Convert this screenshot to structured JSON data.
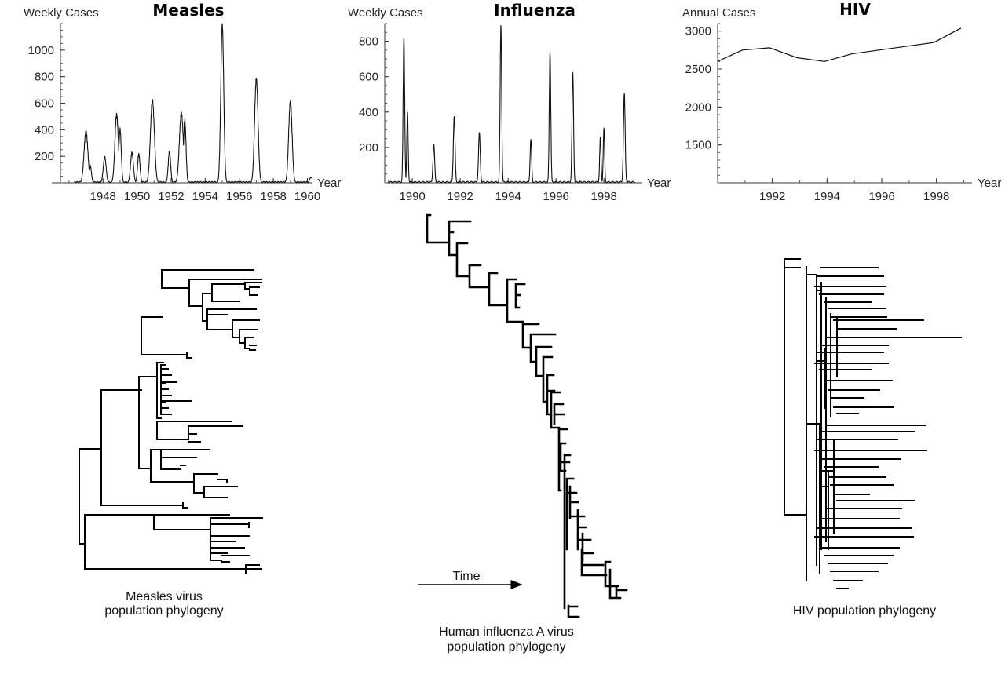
{
  "chart_data": [
    {
      "type": "line",
      "title": "Measles",
      "ylabel": "Weekly Cases",
      "xlabel": "Year",
      "xlim": [
        1945.5,
        1960.3
      ],
      "ylim": [
        0,
        1200
      ],
      "xticks": [
        1948,
        1950,
        1952,
        1954,
        1956,
        1958,
        1960
      ],
      "yticks": [
        200,
        400,
        600,
        800,
        1000
      ],
      "peaks": [
        {
          "x": 1947.0,
          "y": 360,
          "w": 0.16
        },
        {
          "x": 1947.25,
          "y": 120,
          "w": 0.1
        },
        {
          "x": 1948.1,
          "y": 180,
          "w": 0.12
        },
        {
          "x": 1948.8,
          "y": 490,
          "w": 0.14
        },
        {
          "x": 1949.0,
          "y": 380,
          "w": 0.1
        },
        {
          "x": 1949.7,
          "y": 210,
          "w": 0.12
        },
        {
          "x": 1950.1,
          "y": 200,
          "w": 0.1
        },
        {
          "x": 1950.9,
          "y": 600,
          "w": 0.16
        },
        {
          "x": 1951.9,
          "y": 220,
          "w": 0.1
        },
        {
          "x": 1952.6,
          "y": 500,
          "w": 0.16
        },
        {
          "x": 1952.8,
          "y": 450,
          "w": 0.1
        },
        {
          "x": 1955.0,
          "y": 1170,
          "w": 0.12
        },
        {
          "x": 1957.0,
          "y": 760,
          "w": 0.14
        },
        {
          "x": 1959.0,
          "y": 590,
          "w": 0.14
        },
        {
          "x": 1960.2,
          "y": 40,
          "w": 0.1
        }
      ]
    },
    {
      "type": "line",
      "title": "Influenza",
      "ylabel": "Weekly Cases",
      "xlabel": "Year",
      "xlim": [
        1988.85,
        1999.6
      ],
      "ylim": [
        0,
        900
      ],
      "xticks": [
        1990,
        1992,
        1994,
        1996,
        1998
      ],
      "yticks": [
        200,
        400,
        600,
        800
      ],
      "peaks": [
        {
          "x": 1989.65,
          "y": 820,
          "w": 0.045
        },
        {
          "x": 1989.8,
          "y": 400,
          "w": 0.04
        },
        {
          "x": 1990.9,
          "y": 215,
          "w": 0.05
        },
        {
          "x": 1991.75,
          "y": 375,
          "w": 0.05
        },
        {
          "x": 1992.8,
          "y": 285,
          "w": 0.05
        },
        {
          "x": 1993.7,
          "y": 890,
          "w": 0.045
        },
        {
          "x": 1994.95,
          "y": 245,
          "w": 0.045
        },
        {
          "x": 1995.75,
          "y": 740,
          "w": 0.045
        },
        {
          "x": 1996.7,
          "y": 625,
          "w": 0.045
        },
        {
          "x": 1997.85,
          "y": 260,
          "w": 0.04
        },
        {
          "x": 1998.0,
          "y": 310,
          "w": 0.04
        },
        {
          "x": 1998.85,
          "y": 505,
          "w": 0.05
        }
      ]
    },
    {
      "type": "line",
      "title": "HIV",
      "ylabel": "Annual Cases",
      "xlabel": "Year",
      "xlim": [
        1990,
        1999.3
      ],
      "ylim": [
        1000,
        3100
      ],
      "xticks": [
        1992,
        1994,
        1996,
        1998
      ],
      "yticks": [
        1500,
        2000,
        2500,
        3000
      ],
      "x": [
        1990,
        1990.9,
        1991.9,
        1992.9,
        1993.9,
        1994.9,
        1995.9,
        1996.9,
        1997.9,
        1998.9
      ],
      "y": [
        2600,
        2750,
        2780,
        2650,
        2600,
        2700,
        2750,
        2800,
        2850,
        3040
      ]
    }
  ],
  "captions": {
    "measles_line1": "Measles virus",
    "measles_line2": "population phylogeny",
    "flu_line1": "Human influenza A virus",
    "flu_line2": "population phylogeny",
    "hiv_line1": "HIV population phylogeny",
    "time_label": "Time"
  }
}
